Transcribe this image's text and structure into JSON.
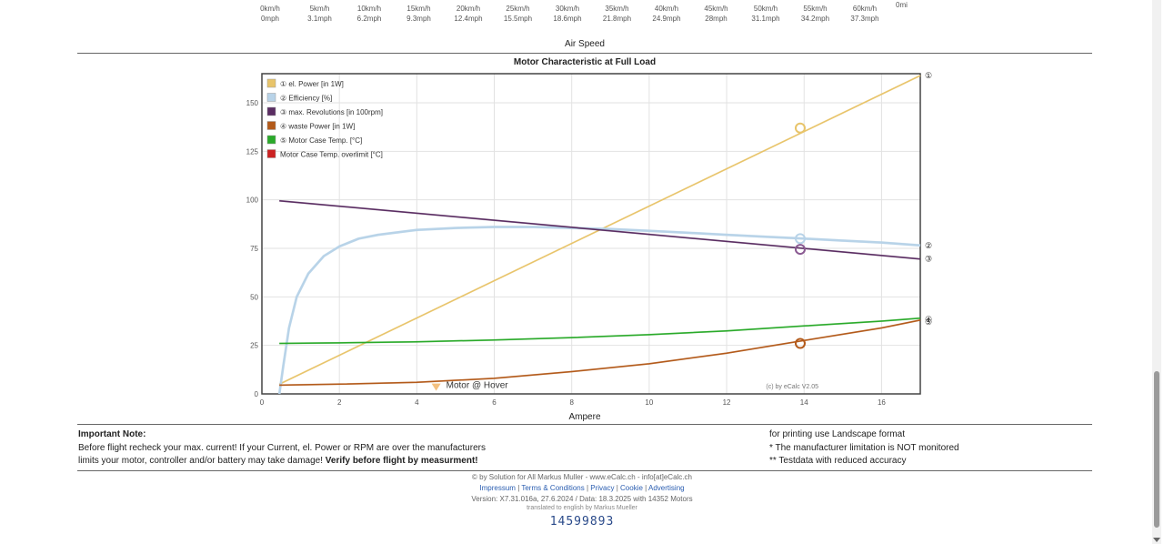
{
  "speed_table": {
    "cells": [
      {
        "kmh": "0km/h",
        "mph": "0mph"
      },
      {
        "kmh": "5km/h",
        "mph": "3.1mph"
      },
      {
        "kmh": "10km/h",
        "mph": "6.2mph"
      },
      {
        "kmh": "15km/h",
        "mph": "9.3mph"
      },
      {
        "kmh": "20km/h",
        "mph": "12.4mph"
      },
      {
        "kmh": "25km/h",
        "mph": "15.5mph"
      },
      {
        "kmh": "30km/h",
        "mph": "18.6mph"
      },
      {
        "kmh": "35km/h",
        "mph": "21.8mph"
      },
      {
        "kmh": "40km/h",
        "mph": "24.9mph"
      },
      {
        "kmh": "45km/h",
        "mph": "28mph"
      },
      {
        "kmh": "50km/h",
        "mph": "31.1mph"
      },
      {
        "kmh": "55km/h",
        "mph": "34.2mph"
      },
      {
        "kmh": "60km/h",
        "mph": "37.3mph"
      }
    ],
    "extra": "0mi",
    "caption": "Air Speed"
  },
  "chart_data": {
    "type": "line",
    "title": "Motor Characteristic at Full Load",
    "xlabel": "Ampere",
    "ylabel": "",
    "xlim": [
      0,
      17
    ],
    "ylim": [
      0,
      165
    ],
    "x_ticks": [
      0,
      2,
      4,
      6,
      8,
      10,
      12,
      14,
      16
    ],
    "y_ticks": [
      0,
      25,
      50,
      75,
      100,
      125,
      150
    ],
    "grid": true,
    "legend_position": "top-left",
    "series": [
      {
        "name": "① el. Power [in 1W]",
        "color": "#e8c46a",
        "x": [
          0.45,
          17
        ],
        "y": [
          5,
          164
        ]
      },
      {
        "name": "② Efficiency [%]",
        "color": "#b8d3e8",
        "x": [
          0.45,
          0.55,
          0.7,
          0.9,
          1.2,
          1.6,
          2.0,
          2.5,
          3,
          4,
          5,
          6,
          7,
          8,
          9,
          10,
          11,
          12,
          13,
          14,
          15,
          16,
          17
        ],
        "y": [
          0,
          14,
          34,
          50,
          62,
          71,
          76,
          80,
          82,
          84.5,
          85.5,
          86,
          86,
          85.5,
          85,
          84,
          83,
          82,
          81,
          80,
          79,
          78,
          76.5
        ]
      },
      {
        "name": "③ max. Revolutions [in 100rpm]",
        "color": "#5a2d62",
        "x": [
          0.45,
          17
        ],
        "y": [
          99.5,
          69.5
        ]
      },
      {
        "name": "④ waste Power [in 1W]",
        "color": "#b35a1a",
        "x": [
          0.45,
          2,
          4,
          6,
          8,
          10,
          12,
          14,
          16,
          17
        ],
        "y": [
          4.5,
          5,
          6,
          8,
          11.5,
          15.5,
          21,
          27.5,
          34,
          38
        ]
      },
      {
        "name": "⑤ Motor Case Temp. [°C]",
        "color": "#2aaa2a",
        "x": [
          0.45,
          2,
          4,
          6,
          8,
          10,
          12,
          14,
          16,
          17
        ],
        "y": [
          26,
          26.3,
          26.8,
          27.8,
          29,
          30.5,
          32.5,
          35,
          37.5,
          39
        ]
      },
      {
        "name": "Motor Case Temp. overlimit [°C]",
        "color": "#cc2222",
        "x": [],
        "y": []
      }
    ],
    "markers": [
      {
        "series": 0,
        "x": 13.9,
        "y": 137,
        "color": "#e8c46a"
      },
      {
        "series": 1,
        "x": 13.9,
        "y": 80,
        "color": "#b8d3e8"
      },
      {
        "series": 2,
        "x": 13.9,
        "y": 74.5,
        "color": "#8a5a92"
      },
      {
        "series": 3,
        "x": 13.9,
        "y": 26,
        "color": "#b35a1a"
      }
    ],
    "hover_marker": {
      "x": 4.5,
      "y": 3,
      "label": "Motor @ Hover",
      "color": "#f0b060"
    },
    "watermark": "(c) by eCalc  V2.05",
    "right_labels": [
      {
        "text": "①",
        "y": 164
      },
      {
        "text": "②",
        "y": 76.5
      },
      {
        "text": "③",
        "y": 69.5
      },
      {
        "text": "④",
        "y": 38.5
      },
      {
        "text": "⑤",
        "y": 37
      }
    ]
  },
  "notes": {
    "title": "Important Note:",
    "line1": "Before flight recheck your max. current! If your Current, el. Power or RPM are over the manufacturers",
    "line2_plain": "limits your motor, controller and/or battery may take damage! ",
    "line2_bold": "Verify before flight by measurment!",
    "right1": "for printing use Landscape format",
    "right2": "* The manufacturer limitation is NOT monitored",
    "right3": "** Testdata with reduced accuracy"
  },
  "footer": {
    "copyright": "© by Solution for All Markus Muller  -  www.eCalc.ch  -  info[at]eCalc.ch",
    "links": [
      "Impressum",
      "Terms & Conditions",
      "Privacy",
      "Cookie",
      "Advertising"
    ],
    "version": "Version: X7.31.016a, 27.6.2024 / Data: 18.3.2025 with 14352 Motors",
    "translated": "translated to english by Markus Mueller",
    "counter": "14599893"
  }
}
